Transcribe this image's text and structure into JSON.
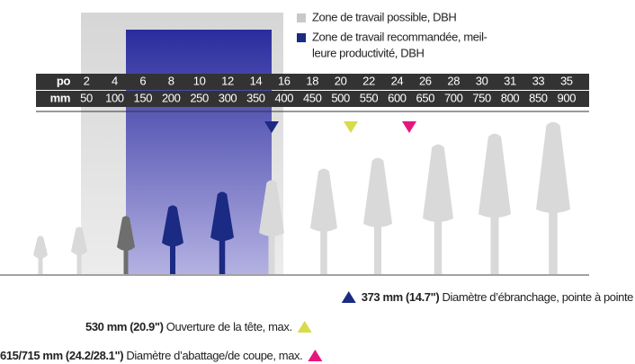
{
  "legend": [
    {
      "lines": [
        "Zone de travail possible, DBH"
      ]
    },
    {
      "lines": [
        "Zone de travail recommandée, meil-",
        "leure productivité, DBH"
      ]
    }
  ],
  "scale": {
    "po_label": "po",
    "mm_label": "mm",
    "po": [
      2,
      4,
      6,
      8,
      10,
      12,
      14,
      16,
      18,
      20,
      22,
      24,
      26,
      28,
      30,
      31,
      33,
      35
    ],
    "mm": [
      50,
      100,
      150,
      200,
      250,
      300,
      350,
      400,
      450,
      500,
      550,
      600,
      650,
      700,
      750,
      800,
      850,
      900
    ]
  },
  "notes": [
    {
      "value": "373 mm (14.7\")",
      "text": "Diamètre d’ébranchage, pointe à pointe"
    },
    {
      "value": "530 mm (20.9\")",
      "text": "Ouverture de la tête, max."
    },
    {
      "value": "615/715 mm (24.2/28.1\")",
      "text": "Diamètre d’abattage/de coupe, max."
    }
  ]
}
